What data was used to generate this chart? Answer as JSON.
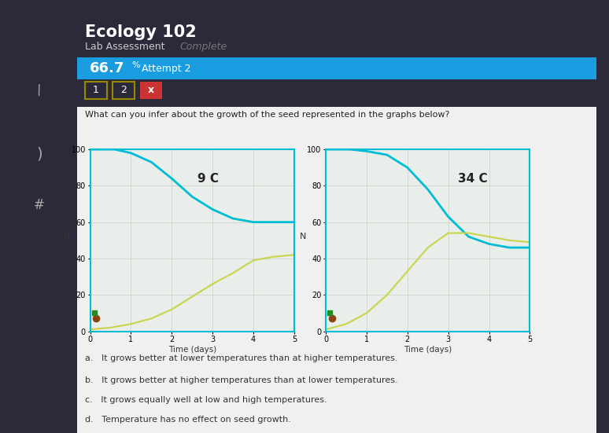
{
  "title": "Ecology 102",
  "subtitle": "Lab Assessment",
  "subtitle2": "Complete",
  "score": "66.7",
  "score_suffix": "%",
  "attempt": "Attempt 2",
  "bg_color": "#2a2a3a",
  "score_bar_color": "#1a9de0",
  "question_text": "What can you infer about the growth of the seed represented in the graphs below?",
  "graph1_title": "9 C",
  "graph2_title": "34 C",
  "graph_bg": "#eaeeea",
  "cyan_color": "#00bcd4",
  "yellow_color": "#c8d44a",
  "answers": [
    "a.   It grows better at lower temperatures than at higher temperatures.",
    "b.   It grows better at higher temperatures than at lower temperatures.",
    "c.   It grows equally well at low and high temperatures.",
    "d.   Temperature has no effect on seed growth."
  ],
  "xlabel": "Time (days)",
  "ylabel": "N",
  "ylim": [
    0,
    100
  ],
  "xlim": [
    0,
    5
  ],
  "yticks": [
    0,
    20,
    40,
    60,
    80,
    100
  ],
  "xticks": [
    0,
    1,
    2,
    3,
    4,
    5
  ],
  "graph1_cyan_x": [
    0,
    0.3,
    0.6,
    1.0,
    1.5,
    2.0,
    2.5,
    3.0,
    3.5,
    4.0,
    4.5,
    5.0
  ],
  "graph1_cyan_y": [
    100,
    100,
    100,
    98,
    93,
    84,
    74,
    67,
    62,
    60,
    60,
    60
  ],
  "graph1_yellow_x": [
    0,
    0.5,
    1.0,
    1.5,
    2.0,
    2.5,
    3.0,
    3.5,
    4.0,
    4.5,
    5.0
  ],
  "graph1_yellow_y": [
    1,
    2,
    4,
    7,
    12,
    19,
    26,
    32,
    39,
    41,
    42
  ],
  "graph2_cyan_x": [
    0,
    0.3,
    0.6,
    1.0,
    1.5,
    2.0,
    2.5,
    3.0,
    3.5,
    4.0,
    4.5,
    5.0
  ],
  "graph2_cyan_y": [
    100,
    100,
    100,
    99,
    97,
    90,
    78,
    63,
    52,
    48,
    46,
    46
  ],
  "graph2_yellow_x": [
    0,
    0.5,
    1.0,
    1.5,
    2.0,
    2.5,
    3.0,
    3.5,
    4.0,
    4.5,
    5.0
  ],
  "graph2_yellow_y": [
    1,
    4,
    10,
    20,
    33,
    46,
    54,
    54,
    52,
    50,
    49
  ],
  "button1_color": "#9a8800",
  "button2_color": "#9a8800",
  "buttonx_color": "#cc3333",
  "content_bg": "#f0f0f0",
  "spine_color": "#00bcd4"
}
